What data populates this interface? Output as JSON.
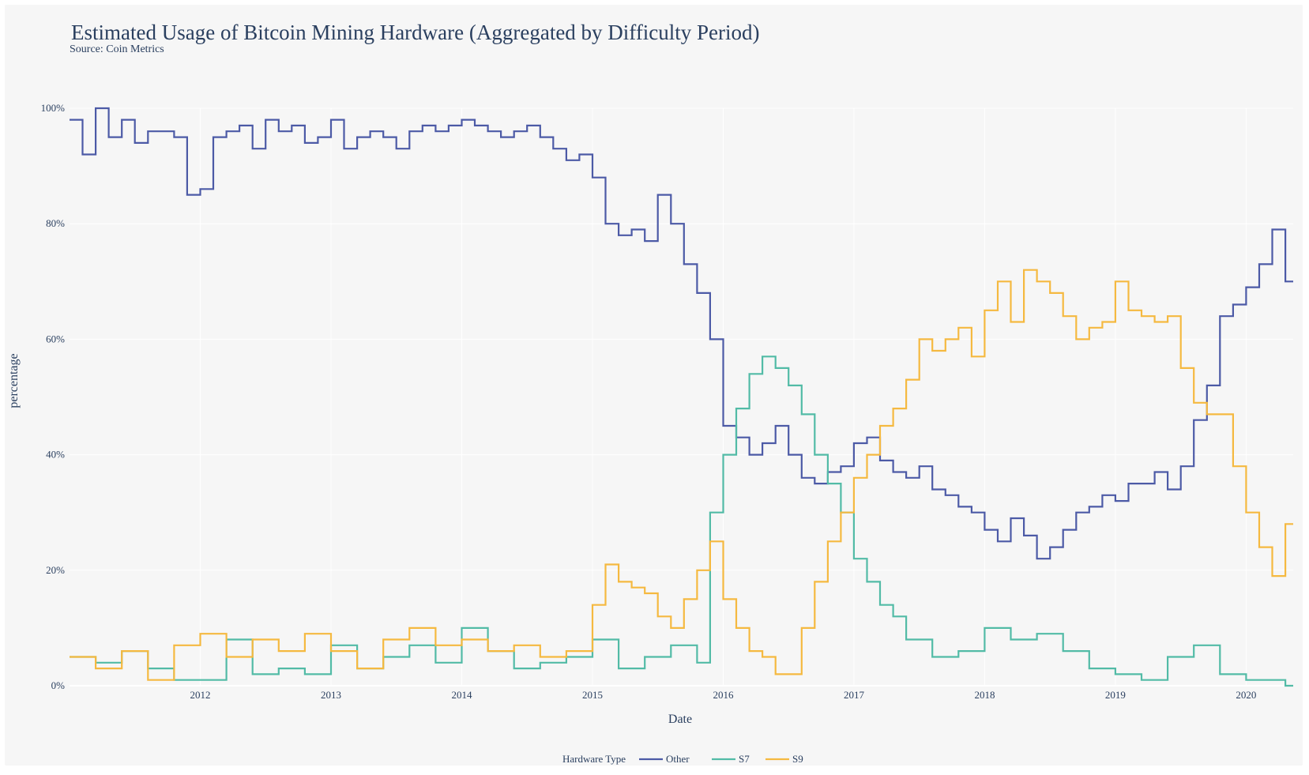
{
  "chart_data": {
    "type": "line",
    "line_shape": "step",
    "title": "Estimated Usage of Bitcoin Mining Hardware  (Aggregated by Difficulty Period)",
    "subtitle": "Source: Coin Metrics",
    "xlabel": "Date",
    "ylabel": "percentage",
    "xlim": [
      2011.0,
      2020.36
    ],
    "ylim": [
      0,
      100
    ],
    "x_ticks": [
      "2012",
      "2013",
      "2014",
      "2015",
      "2016",
      "2017",
      "2018",
      "2019",
      "2020"
    ],
    "y_ticks": [
      "0%",
      "20%",
      "40%",
      "60%",
      "80%",
      "100%"
    ],
    "grid": true,
    "legend": {
      "title": "Hardware Type",
      "position": "bottom-center"
    },
    "series": [
      {
        "name": "Other",
        "color": "#4c5aa6",
        "x": [
          2011.0,
          2011.1,
          2011.2,
          2011.3,
          2011.4,
          2011.5,
          2011.6,
          2011.7,
          2011.8,
          2011.9,
          2012.0,
          2012.1,
          2012.2,
          2012.3,
          2012.4,
          2012.5,
          2012.6,
          2012.7,
          2012.8,
          2012.9,
          2013.0,
          2013.1,
          2013.2,
          2013.3,
          2013.4,
          2013.5,
          2013.6,
          2013.7,
          2013.8,
          2013.9,
          2014.0,
          2014.1,
          2014.2,
          2014.3,
          2014.4,
          2014.5,
          2014.6,
          2014.7,
          2014.8,
          2014.9,
          2015.0,
          2015.1,
          2015.2,
          2015.3,
          2015.4,
          2015.5,
          2015.6,
          2015.7,
          2015.8,
          2015.9,
          2016.0,
          2016.1,
          2016.2,
          2016.3,
          2016.4,
          2016.5,
          2016.6,
          2016.7,
          2016.8,
          2016.9,
          2017.0,
          2017.1,
          2017.2,
          2017.3,
          2017.4,
          2017.5,
          2017.6,
          2017.7,
          2017.8,
          2017.9,
          2018.0,
          2018.1,
          2018.2,
          2018.3,
          2018.4,
          2018.5,
          2018.6,
          2018.7,
          2018.8,
          2018.9,
          2019.0,
          2019.1,
          2019.2,
          2019.3,
          2019.4,
          2019.5,
          2019.6,
          2019.7,
          2019.8,
          2019.9,
          2020.0,
          2020.1,
          2020.2,
          2020.3
        ],
        "y": [
          98,
          92,
          100,
          95,
          98,
          94,
          96,
          96,
          95,
          85,
          86,
          95,
          96,
          97,
          93,
          98,
          96,
          97,
          94,
          95,
          98,
          93,
          95,
          96,
          95,
          93,
          96,
          97,
          96,
          97,
          98,
          97,
          96,
          95,
          96,
          97,
          95,
          93,
          91,
          92,
          88,
          80,
          78,
          79,
          77,
          85,
          80,
          73,
          68,
          60,
          45,
          43,
          40,
          42,
          45,
          40,
          36,
          35,
          37,
          38,
          42,
          43,
          39,
          37,
          36,
          38,
          34,
          33,
          31,
          30,
          27,
          25,
          29,
          26,
          22,
          24,
          27,
          30,
          31,
          33,
          32,
          35,
          35,
          37,
          34,
          38,
          46,
          52,
          64,
          66,
          69,
          73,
          79,
          70
        ]
      },
      {
        "name": "S7",
        "color": "#52bba6",
        "x": [
          2011.0,
          2011.2,
          2011.4,
          2011.6,
          2011.8,
          2012.0,
          2012.2,
          2012.4,
          2012.6,
          2012.8,
          2013.0,
          2013.2,
          2013.4,
          2013.6,
          2013.8,
          2014.0,
          2014.2,
          2014.4,
          2014.6,
          2014.8,
          2015.0,
          2015.2,
          2015.4,
          2015.6,
          2015.8,
          2015.9,
          2016.0,
          2016.1,
          2016.2,
          2016.3,
          2016.4,
          2016.5,
          2016.6,
          2016.7,
          2016.8,
          2016.9,
          2017.0,
          2017.1,
          2017.2,
          2017.3,
          2017.4,
          2017.6,
          2017.8,
          2018.0,
          2018.2,
          2018.4,
          2018.6,
          2018.8,
          2019.0,
          2019.2,
          2019.4,
          2019.6,
          2019.8,
          2020.0,
          2020.2,
          2020.3
        ],
        "y": [
          5,
          4,
          6,
          3,
          1,
          1,
          8,
          2,
          3,
          2,
          7,
          3,
          5,
          7,
          4,
          10,
          6,
          3,
          4,
          5,
          8,
          3,
          5,
          7,
          4,
          30,
          40,
          48,
          54,
          57,
          55,
          52,
          47,
          40,
          35,
          30,
          22,
          18,
          14,
          12,
          8,
          5,
          6,
          10,
          8,
          9,
          6,
          3,
          2,
          1,
          5,
          7,
          2,
          1,
          1,
          0
        ]
      },
      {
        "name": "S9",
        "color": "#f5b940",
        "x": [
          2011.0,
          2011.2,
          2011.4,
          2011.6,
          2011.8,
          2012.0,
          2012.2,
          2012.4,
          2012.6,
          2012.8,
          2013.0,
          2013.2,
          2013.4,
          2013.6,
          2013.8,
          2014.0,
          2014.2,
          2014.4,
          2014.6,
          2014.8,
          2015.0,
          2015.1,
          2015.2,
          2015.3,
          2015.4,
          2015.5,
          2015.6,
          2015.7,
          2015.8,
          2015.9,
          2016.0,
          2016.1,
          2016.2,
          2016.3,
          2016.4,
          2016.5,
          2016.6,
          2016.7,
          2016.8,
          2016.9,
          2017.0,
          2017.1,
          2017.2,
          2017.3,
          2017.4,
          2017.5,
          2017.6,
          2017.7,
          2017.8,
          2017.9,
          2018.0,
          2018.1,
          2018.2,
          2018.3,
          2018.4,
          2018.5,
          2018.6,
          2018.7,
          2018.8,
          2018.9,
          2019.0,
          2019.1,
          2019.2,
          2019.3,
          2019.4,
          2019.5,
          2019.6,
          2019.7,
          2019.8,
          2019.9,
          2020.0,
          2020.1,
          2020.2,
          2020.3
        ],
        "y": [
          5,
          3,
          6,
          1,
          7,
          9,
          5,
          8,
          6,
          9,
          6,
          3,
          8,
          10,
          7,
          8,
          6,
          7,
          5,
          6,
          14,
          21,
          18,
          17,
          16,
          12,
          10,
          15,
          20,
          25,
          15,
          10,
          6,
          5,
          2,
          2,
          10,
          18,
          25,
          30,
          36,
          40,
          45,
          48,
          53,
          60,
          58,
          60,
          62,
          57,
          65,
          70,
          63,
          72,
          70,
          68,
          64,
          60,
          62,
          63,
          70,
          65,
          64,
          63,
          64,
          55,
          49,
          47,
          47,
          38,
          30,
          24,
          19,
          28
        ]
      }
    ]
  }
}
